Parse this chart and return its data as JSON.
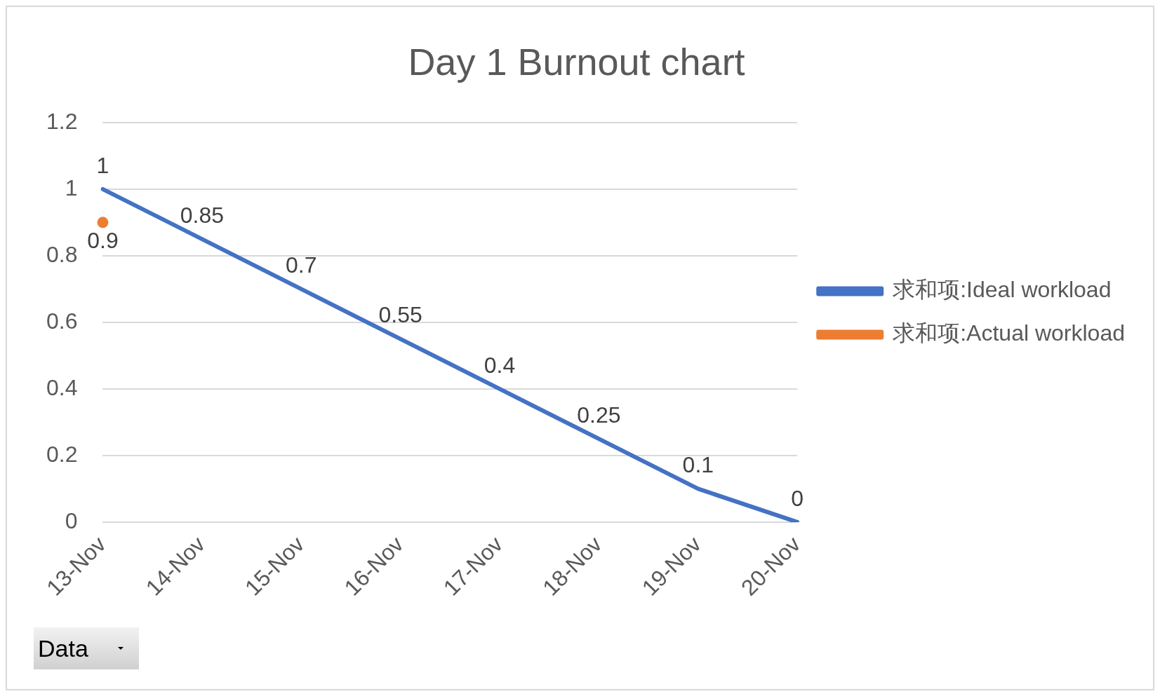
{
  "chart_data": {
    "type": "line",
    "title": "Day 1 Burnout chart",
    "categories": [
      "13-Nov",
      "14-Nov",
      "15-Nov",
      "16-Nov",
      "17-Nov",
      "18-Nov",
      "19-Nov",
      "20-Nov"
    ],
    "series": [
      {
        "name": "求和项:Ideal workload",
        "color": "#4472c4",
        "values": [
          1,
          0.85,
          0.7,
          0.55,
          0.4,
          0.25,
          0.1,
          0
        ]
      },
      {
        "name": "求和项:Actual workload",
        "color": "#ed7d31",
        "marker": "circle",
        "values": [
          0.9,
          null,
          null,
          null,
          null,
          null,
          null,
          null
        ]
      }
    ],
    "ylim": [
      0,
      1.2
    ],
    "yticks": [
      0,
      0.2,
      0.4,
      0.6,
      0.8,
      1,
      1.2
    ],
    "grid": "y",
    "legend": "right",
    "marker": "none",
    "data_labels": true,
    "annotations": [
      "Data"
    ]
  }
}
